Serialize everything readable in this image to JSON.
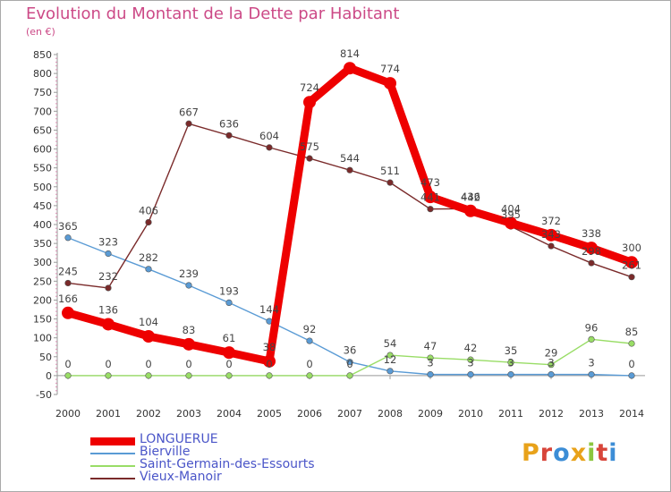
{
  "title": "Evolution du Montant de la Dette par Habitant",
  "unit": "(en €)",
  "logo": {
    "text": "Proxiti",
    "colors": [
      "#e8a21a",
      "#d8453a",
      "#3c8dd6",
      "#e8a21a",
      "#8cc63f",
      "#d8453a",
      "#3c8dd6"
    ]
  },
  "chart_data": {
    "type": "line",
    "x": [
      "2000",
      "2001",
      "2002",
      "2003",
      "2004",
      "2005",
      "2006",
      "2007",
      "2008",
      "2009",
      "2010",
      "2011",
      "2012",
      "2013",
      "2014"
    ],
    "ylim": [
      -50,
      850
    ],
    "yticks": [
      -50,
      0,
      50,
      100,
      150,
      200,
      250,
      300,
      350,
      400,
      450,
      500,
      550,
      600,
      650,
      700,
      750,
      800,
      850
    ],
    "grid": false,
    "legend": "bottom-left",
    "series": [
      {
        "name": "LONGUERUE",
        "color": "#ee0000",
        "emphasis": true,
        "values": [
          166,
          136,
          104,
          83,
          61,
          38,
          724,
          814,
          774,
          473,
          436,
          404,
          372,
          338,
          300
        ]
      },
      {
        "name": "Bierville",
        "color": "#5a9bd5",
        "values": [
          365,
          323,
          282,
          239,
          193,
          144,
          92,
          36,
          12,
          3,
          3,
          3,
          3,
          3,
          0
        ]
      },
      {
        "name": "Saint-Germain-des-Essourts",
        "color": "#99dd66",
        "values": [
          0,
          0,
          0,
          0,
          0,
          0,
          0,
          0,
          54,
          47,
          42,
          35,
          29,
          96,
          85
        ]
      },
      {
        "name": "Vieux-Manoir",
        "color": "#7a2a2a",
        "values": [
          245,
          232,
          406,
          667,
          636,
          604,
          575,
          544,
          511,
          441,
          442,
          395,
          343,
          298,
          261
        ]
      }
    ]
  }
}
